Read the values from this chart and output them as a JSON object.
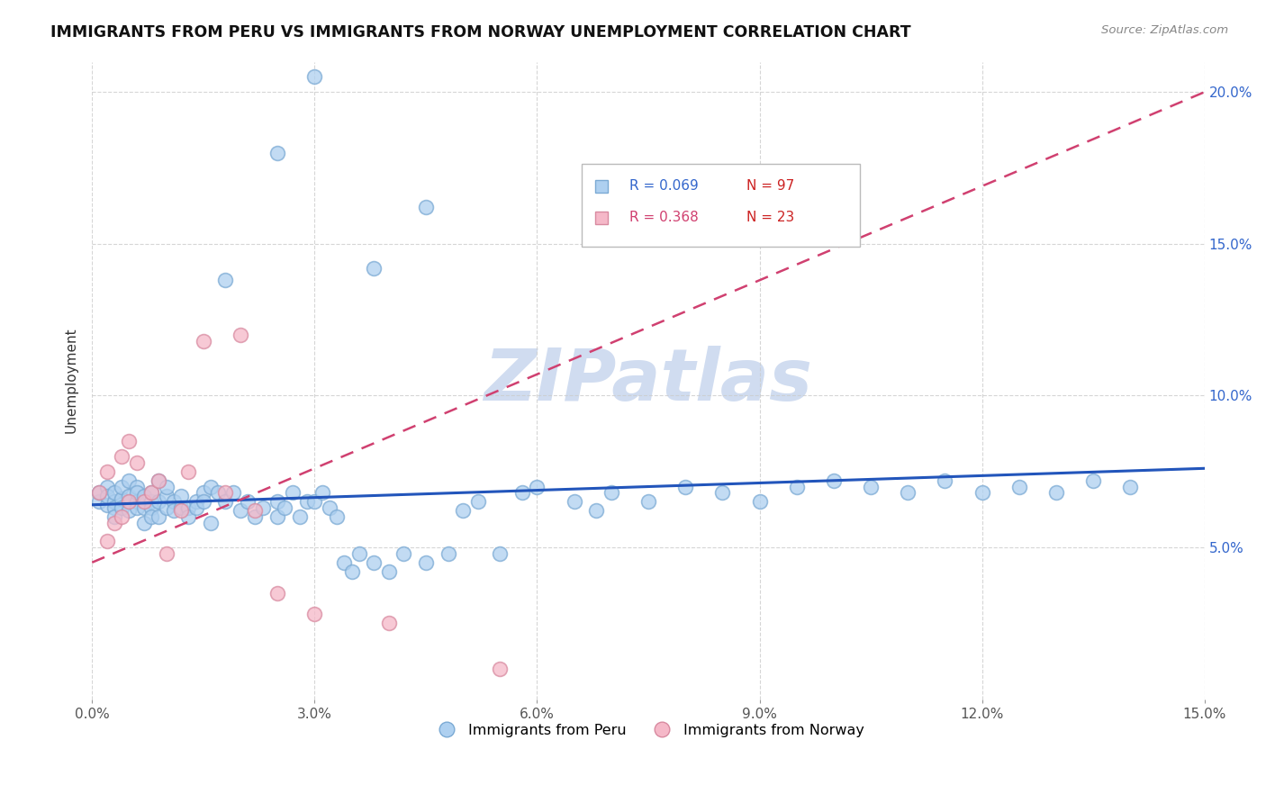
{
  "title": "IMMIGRANTS FROM PERU VS IMMIGRANTS FROM NORWAY UNEMPLOYMENT CORRELATION CHART",
  "source": "Source: ZipAtlas.com",
  "ylabel": "Unemployment",
  "xlim": [
    0.0,
    0.15
  ],
  "ylim": [
    0.0,
    0.21
  ],
  "xtick_vals": [
    0.0,
    0.03,
    0.06,
    0.09,
    0.12,
    0.15
  ],
  "ytick_vals": [
    0.05,
    0.1,
    0.15,
    0.2
  ],
  "ytick_labels": [
    "5.0%",
    "10.0%",
    "15.0%",
    "20.0%"
  ],
  "xtick_labels": [
    "0.0%",
    "3.0%",
    "6.0%",
    "9.0%",
    "12.0%",
    "15.0%"
  ],
  "legend_r_peru": "0.069",
  "legend_n_peru": "97",
  "legend_r_norway": "0.368",
  "legend_n_norway": "23",
  "peru_color": "#AED0F0",
  "peru_edge_color": "#7BAAD4",
  "norway_color": "#F5B8C8",
  "norway_edge_color": "#D88AA0",
  "trend_peru_color": "#2255BB",
  "trend_norway_color": "#D04070",
  "watermark_color": "#D0DCF0",
  "peru_x": [
    0.001,
    0.001,
    0.002,
    0.002,
    0.002,
    0.003,
    0.003,
    0.003,
    0.003,
    0.004,
    0.004,
    0.004,
    0.005,
    0.005,
    0.005,
    0.005,
    0.006,
    0.006,
    0.006,
    0.006,
    0.007,
    0.007,
    0.007,
    0.008,
    0.008,
    0.008,
    0.008,
    0.009,
    0.009,
    0.009,
    0.01,
    0.01,
    0.01,
    0.011,
    0.011,
    0.012,
    0.012,
    0.013,
    0.013,
    0.014,
    0.014,
    0.015,
    0.015,
    0.016,
    0.016,
    0.017,
    0.018,
    0.019,
    0.02,
    0.021,
    0.022,
    0.023,
    0.025,
    0.025,
    0.026,
    0.027,
    0.028,
    0.029,
    0.03,
    0.031,
    0.032,
    0.033,
    0.034,
    0.035,
    0.036,
    0.038,
    0.04,
    0.042,
    0.045,
    0.048,
    0.05,
    0.052,
    0.055,
    0.058,
    0.06,
    0.065,
    0.068,
    0.07,
    0.075,
    0.08,
    0.085,
    0.09,
    0.095,
    0.1,
    0.105,
    0.11,
    0.115,
    0.12,
    0.125,
    0.13,
    0.135,
    0.14,
    0.038,
    0.045,
    0.03,
    0.018,
    0.025
  ],
  "peru_y": [
    0.065,
    0.068,
    0.064,
    0.07,
    0.067,
    0.065,
    0.063,
    0.068,
    0.06,
    0.066,
    0.063,
    0.07,
    0.065,
    0.062,
    0.067,
    0.072,
    0.065,
    0.063,
    0.07,
    0.068,
    0.063,
    0.058,
    0.067,
    0.065,
    0.063,
    0.068,
    0.06,
    0.065,
    0.06,
    0.072,
    0.063,
    0.067,
    0.07,
    0.065,
    0.062,
    0.063,
    0.067,
    0.063,
    0.06,
    0.065,
    0.063,
    0.068,
    0.065,
    0.058,
    0.07,
    0.068,
    0.065,
    0.068,
    0.062,
    0.065,
    0.06,
    0.063,
    0.065,
    0.06,
    0.063,
    0.068,
    0.06,
    0.065,
    0.065,
    0.068,
    0.063,
    0.06,
    0.045,
    0.042,
    0.048,
    0.045,
    0.042,
    0.048,
    0.045,
    0.048,
    0.062,
    0.065,
    0.048,
    0.068,
    0.07,
    0.065,
    0.062,
    0.068,
    0.065,
    0.07,
    0.068,
    0.065,
    0.07,
    0.072,
    0.07,
    0.068,
    0.072,
    0.068,
    0.07,
    0.068,
    0.072,
    0.07,
    0.142,
    0.162,
    0.205,
    0.138,
    0.18
  ],
  "norway_x": [
    0.001,
    0.002,
    0.002,
    0.003,
    0.004,
    0.004,
    0.005,
    0.005,
    0.006,
    0.007,
    0.008,
    0.009,
    0.01,
    0.012,
    0.013,
    0.015,
    0.018,
    0.02,
    0.022,
    0.025,
    0.03,
    0.04,
    0.055
  ],
  "norway_y": [
    0.068,
    0.052,
    0.075,
    0.058,
    0.06,
    0.08,
    0.085,
    0.065,
    0.078,
    0.065,
    0.068,
    0.072,
    0.048,
    0.062,
    0.075,
    0.118,
    0.068,
    0.12,
    0.062,
    0.035,
    0.028,
    0.025,
    0.01
  ]
}
